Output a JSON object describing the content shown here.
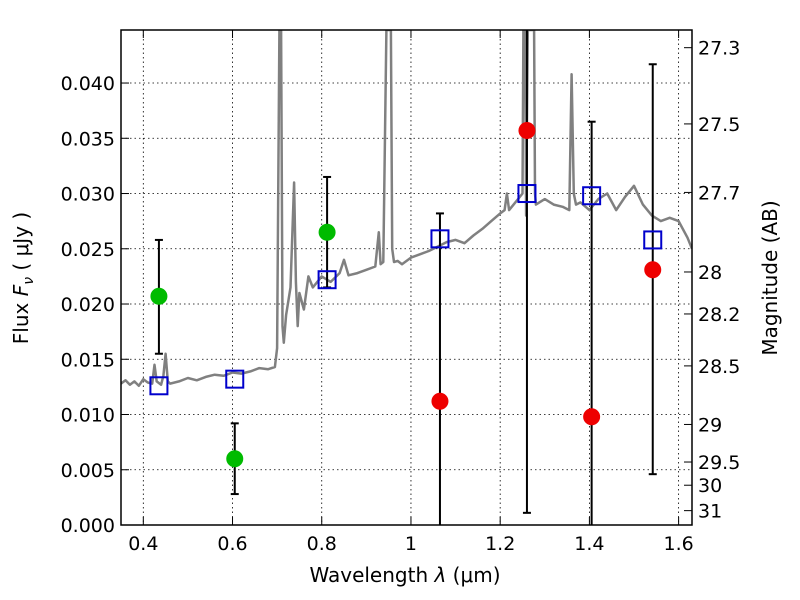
{
  "chart_data": {
    "type": "scatter",
    "xlabel": "Wavelength  λ (μm)",
    "ylabel": "Flux  F_ν  ( μJy )",
    "ylabel_parts": {
      "prefix": "Flux ",
      "symbol": "F",
      "subscript": "ν",
      "suffix": "  ( μJy )"
    },
    "xlabel_parts": {
      "prefix": "Wavelength  ",
      "symbol": "λ",
      "suffix": " (μm)"
    },
    "y2label": "Magnitude (AB)",
    "xlim": [
      0.35,
      1.63
    ],
    "ylim": [
      0.0,
      0.0448
    ],
    "grid": true,
    "x_ticks": [
      {
        "value": 0.4,
        "label": "0.4"
      },
      {
        "value": 0.6,
        "label": "0.6"
      },
      {
        "value": 0.8,
        "label": "0.8"
      },
      {
        "value": 1.0,
        "label": "1"
      },
      {
        "value": 1.2,
        "label": "1.2"
      },
      {
        "value": 1.4,
        "label": "1.4"
      },
      {
        "value": 1.6,
        "label": "1.6"
      }
    ],
    "y_ticks": [
      {
        "value": 0.0,
        "label": "0.000"
      },
      {
        "value": 0.005,
        "label": "0.005"
      },
      {
        "value": 0.01,
        "label": "0.010"
      },
      {
        "value": 0.015,
        "label": "0.015"
      },
      {
        "value": 0.02,
        "label": "0.020"
      },
      {
        "value": 0.025,
        "label": "0.025"
      },
      {
        "value": 0.03,
        "label": "0.030"
      },
      {
        "value": 0.035,
        "label": "0.035"
      },
      {
        "value": 0.04,
        "label": "0.040"
      }
    ],
    "y2_ticks": [
      {
        "flux": 0.0432,
        "label": "27.3"
      },
      {
        "flux": 0.0363,
        "label": "27.5"
      },
      {
        "flux": 0.0301,
        "label": "27.7"
      },
      {
        "flux": 0.0229,
        "label": "28"
      },
      {
        "flux": 0.0191,
        "label": "28.2"
      },
      {
        "flux": 0.0144,
        "label": "28.5"
      },
      {
        "flux": 0.0091,
        "label": "29"
      },
      {
        "flux": 0.0057,
        "label": "29.5"
      },
      {
        "flux": 0.0036,
        "label": "30"
      },
      {
        "flux": 0.0013,
        "label": "31"
      }
    ],
    "series": [
      {
        "marker": "line",
        "color": "#808080",
        "x": [
          0.35,
          0.36,
          0.37,
          0.38,
          0.39,
          0.4,
          0.41,
          0.42,
          0.425,
          0.43,
          0.44,
          0.445,
          0.45,
          0.455,
          0.46,
          0.48,
          0.5,
          0.52,
          0.54,
          0.56,
          0.58,
          0.6,
          0.62,
          0.64,
          0.66,
          0.68,
          0.695,
          0.7,
          0.705,
          0.707,
          0.709,
          0.712,
          0.715,
          0.72,
          0.73,
          0.738,
          0.742,
          0.746,
          0.75,
          0.76,
          0.77,
          0.78,
          0.79,
          0.8,
          0.82,
          0.84,
          0.85,
          0.86,
          0.88,
          0.9,
          0.92,
          0.928,
          0.932,
          0.938,
          0.945,
          0.952,
          0.955,
          0.958,
          0.962,
          0.97,
          0.98,
          1.0,
          1.02,
          1.04,
          1.06,
          1.08,
          1.1,
          1.12,
          1.14,
          1.16,
          1.18,
          1.2,
          1.21,
          1.215,
          1.22,
          1.23,
          1.24,
          1.25,
          1.252,
          1.254,
          1.256,
          1.258,
          1.262,
          1.266,
          1.27,
          1.272,
          1.274,
          1.276,
          1.278,
          1.28,
          1.3,
          1.32,
          1.34,
          1.355,
          1.36,
          1.365,
          1.37,
          1.38,
          1.4,
          1.42,
          1.44,
          1.46,
          1.48,
          1.5,
          1.52,
          1.54,
          1.56,
          1.58,
          1.6,
          1.62,
          1.63
        ],
        "y": [
          0.0128,
          0.0131,
          0.0127,
          0.013,
          0.0126,
          0.0132,
          0.0129,
          0.0128,
          0.0145,
          0.013,
          0.0127,
          0.0135,
          0.0155,
          0.013,
          0.0128,
          0.013,
          0.0133,
          0.0131,
          0.0134,
          0.0136,
          0.0135,
          0.0138,
          0.0137,
          0.0139,
          0.0142,
          0.0141,
          0.0143,
          0.016,
          0.0448,
          0.0448,
          0.0448,
          0.018,
          0.0165,
          0.019,
          0.0215,
          0.031,
          0.022,
          0.018,
          0.021,
          0.0195,
          0.0225,
          0.0215,
          0.022,
          0.0225,
          0.022,
          0.0228,
          0.024,
          0.0226,
          0.0228,
          0.0231,
          0.0234,
          0.0265,
          0.0236,
          0.0238,
          0.0448,
          0.0448,
          0.0448,
          0.025,
          0.0238,
          0.0239,
          0.0236,
          0.0242,
          0.0245,
          0.0248,
          0.0252,
          0.0256,
          0.0258,
          0.0255,
          0.0262,
          0.0268,
          0.0275,
          0.0282,
          0.0285,
          0.03,
          0.0285,
          0.029,
          0.0295,
          0.03,
          0.0448,
          0.0448,
          0.0448,
          0.028,
          0.0448,
          0.0448,
          0.0448,
          0.0448,
          0.0448,
          0.0448,
          0.03,
          0.029,
          0.0295,
          0.029,
          0.0288,
          0.0285,
          0.0408,
          0.03,
          0.029,
          0.0292,
          0.0285,
          0.0295,
          0.03,
          0.0285,
          0.0297,
          0.0307,
          0.029,
          0.028,
          0.0275,
          0.0278,
          0.0275,
          0.026,
          0.025
        ]
      },
      {
        "marker": "square",
        "color": "#0000cc",
        "x": [
          0.435,
          0.605,
          0.812,
          1.065,
          1.26,
          1.405,
          1.542
        ],
        "y": [
          0.0126,
          0.0132,
          0.0222,
          0.0259,
          0.03,
          0.0298,
          0.0258
        ]
      },
      {
        "marker": "circle",
        "color": "#00bb00",
        "x": [
          0.435,
          0.605,
          0.812
        ],
        "y": [
          0.0207,
          0.006,
          0.0265
        ],
        "yerr_low": [
          0.0155,
          0.0028,
          0.0215
        ],
        "yerr_high": [
          0.0258,
          0.0092,
          0.0315
        ]
      },
      {
        "marker": "circle",
        "color": "#ee0000",
        "x": [
          1.065,
          1.26,
          1.405,
          1.542
        ],
        "y": [
          0.0112,
          0.0357,
          0.0098,
          0.0231
        ],
        "yerr_low": [
          0.0,
          0.0011,
          0.0,
          0.0046
        ],
        "yerr_high": [
          0.0282,
          0.0448,
          0.0365,
          0.0417
        ]
      }
    ]
  }
}
